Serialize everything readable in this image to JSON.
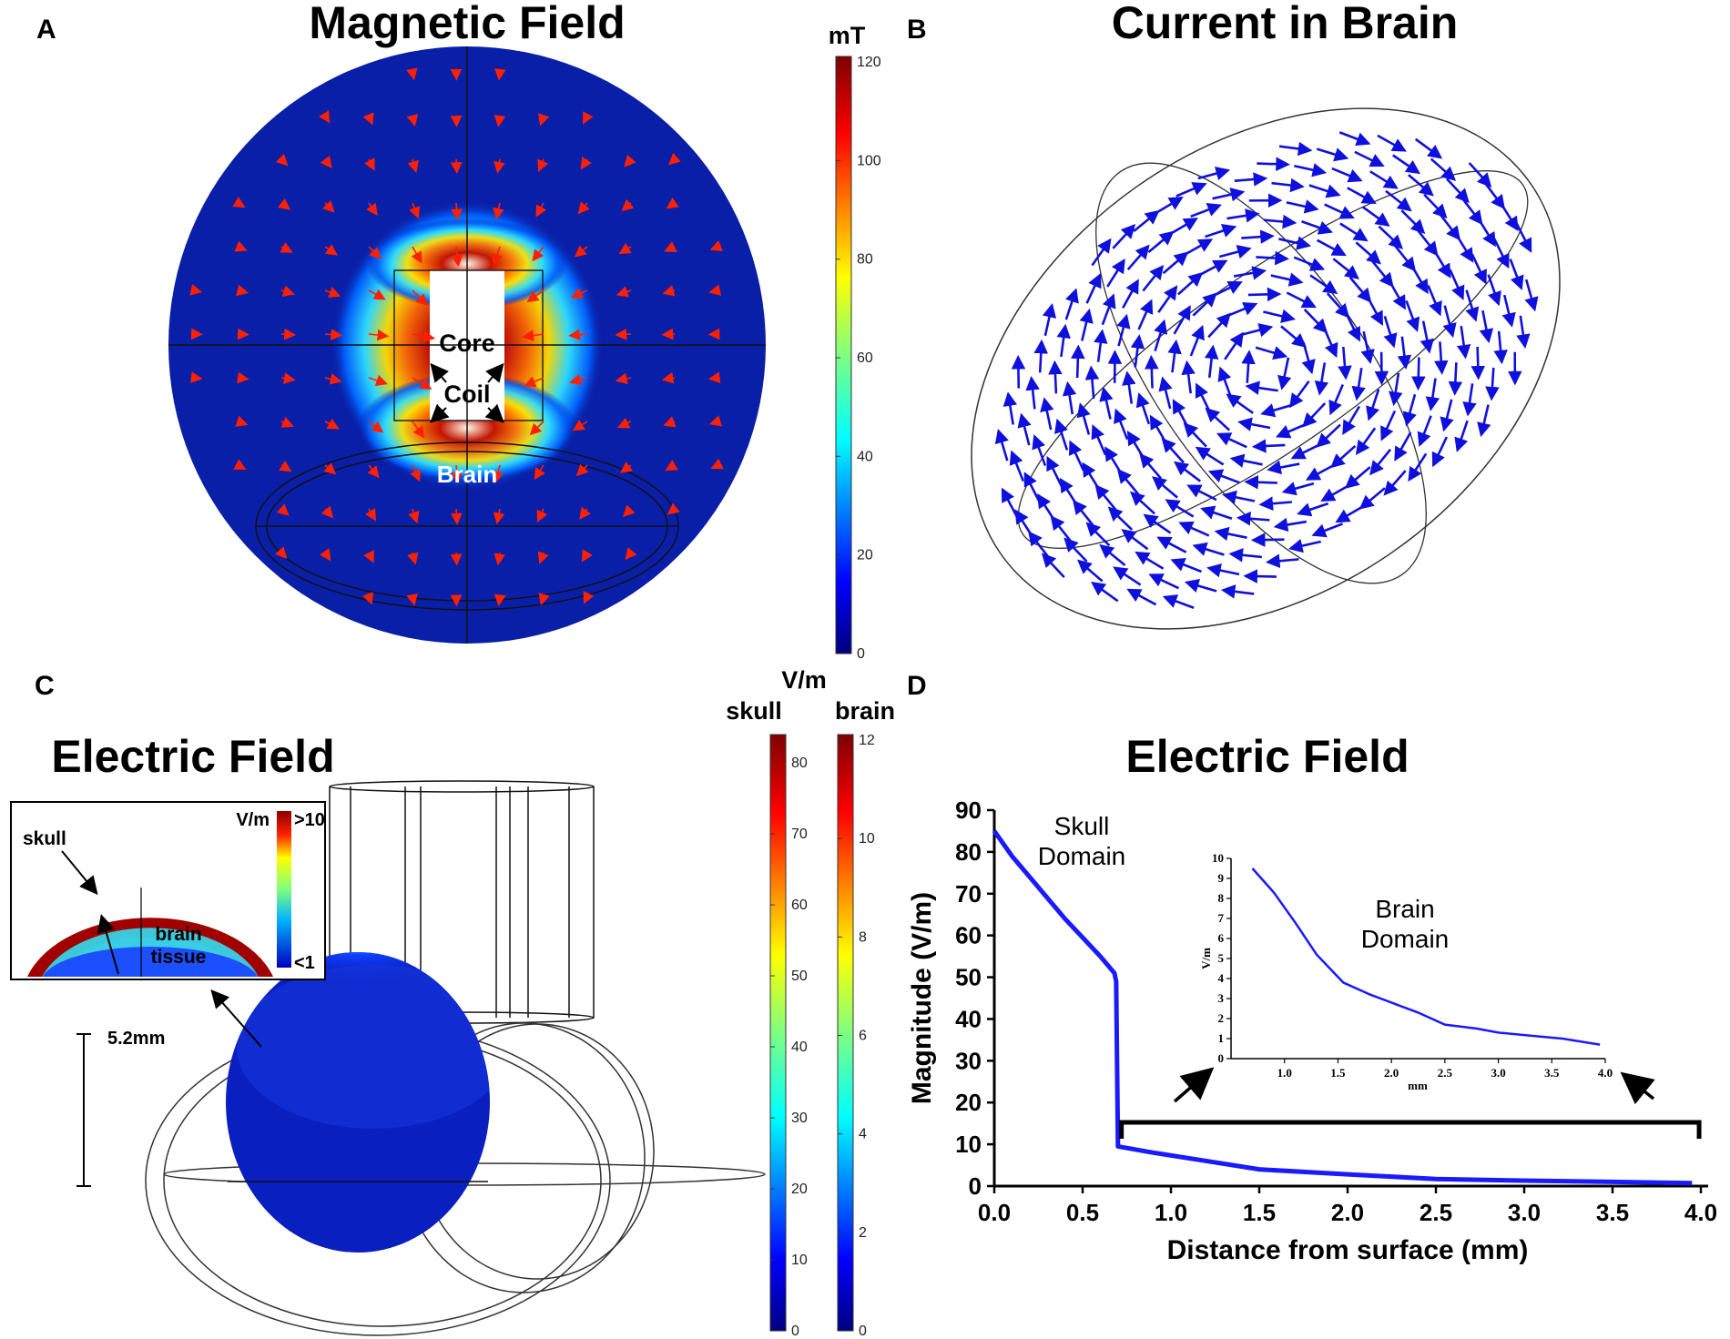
{
  "panels": {
    "A": {
      "letter": "A",
      "title": "Magnetic Field",
      "colorbar": {
        "unit": "mT",
        "ticks": [
          "0",
          "20",
          "40",
          "60",
          "80",
          "100",
          "120"
        ]
      },
      "labels": {
        "core": "Core",
        "coil": "Coil",
        "brain": "Brain"
      }
    },
    "B": {
      "letter": "B",
      "title": "Current in Brain"
    },
    "C": {
      "letter": "C",
      "title": "Electric Field",
      "colorbar_unit": "V/m",
      "colorbar_skull": {
        "label": "skull",
        "ticks": [
          "0",
          "10",
          "20",
          "30",
          "40",
          "50",
          "60",
          "70",
          "80"
        ]
      },
      "colorbar_brain": {
        "label": "brain",
        "ticks": [
          "0",
          "2",
          "4",
          "6",
          "8",
          "10",
          "12"
        ]
      },
      "inset": {
        "unit": "V/m",
        "max_label": ">10",
        "min_label": "<1",
        "skull_label": "skull",
        "brain_label_1": "brain",
        "brain_label_2": "tissue"
      },
      "scale_label": "5.2mm"
    },
    "D": {
      "letter": "D",
      "title": "Electric Field"
    }
  },
  "chart_data": [
    {
      "type": "line",
      "title": "Electric Field",
      "xlabel": "Distance from surface (mm)",
      "ylabel": "Magnitude (V/m)",
      "xlim": [
        0,
        4.0
      ],
      "ylim": [
        0,
        90
      ],
      "xticks": [
        "0.0",
        "0.5",
        "1.0",
        "1.5",
        "2.0",
        "2.5",
        "3.0",
        "3.5",
        "4.0"
      ],
      "yticks": [
        "0",
        "10",
        "20",
        "30",
        "40",
        "50",
        "60",
        "70",
        "80",
        "90"
      ],
      "x": [
        0.0,
        0.1,
        0.2,
        0.3,
        0.4,
        0.5,
        0.6,
        0.68,
        0.69,
        0.7,
        0.9,
        1.2,
        1.5,
        2.0,
        2.5,
        3.0,
        3.5,
        3.95
      ],
      "y": [
        85,
        79,
        74,
        69,
        64,
        59.5,
        55,
        51,
        49,
        9.5,
        8,
        6,
        4,
        2.8,
        1.7,
        1.3,
        1.0,
        0.7
      ],
      "annotations": [
        {
          "text_1": "Skull",
          "text_2": "Domain"
        }
      ]
    },
    {
      "type": "line",
      "xlabel": "mm",
      "ylabel": "V/m",
      "xlim": [
        0.5,
        4.0
      ],
      "ylim": [
        0,
        10
      ],
      "xticks": [
        "1.0",
        "1.5",
        "2.0",
        "2.5",
        "3.0",
        "3.5",
        "4.0"
      ],
      "yticks": [
        "0",
        "1",
        "2",
        "3",
        "4",
        "5",
        "6",
        "7",
        "8",
        "9",
        "10"
      ],
      "x": [
        0.7,
        0.9,
        1.1,
        1.3,
        1.55,
        1.8,
        2.0,
        2.25,
        2.5,
        2.8,
        3.0,
        3.3,
        3.6,
        3.95
      ],
      "y": [
        9.5,
        8.3,
        6.8,
        5.2,
        3.8,
        3.2,
        2.8,
        2.3,
        1.7,
        1.5,
        1.3,
        1.15,
        1.0,
        0.7
      ],
      "annotations": [
        {
          "text_1": "Brain",
          "text_2": "Domain"
        }
      ]
    }
  ]
}
